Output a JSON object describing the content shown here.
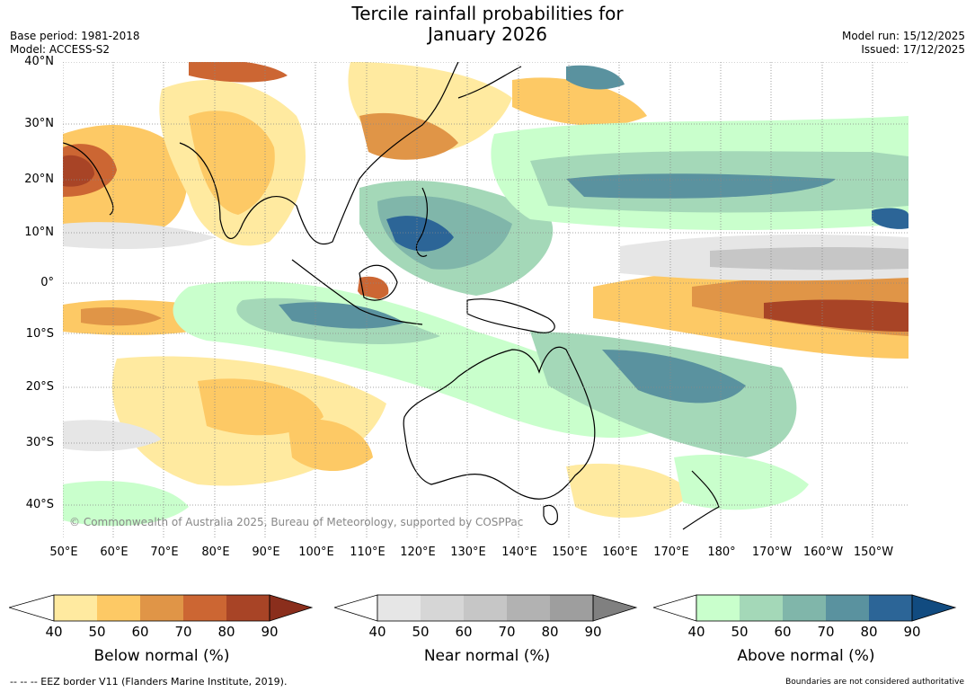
{
  "header": {
    "title_line1": "Tercile rainfall probabilities for",
    "title_line2": "January 2026",
    "base_period": "Base period: 1981-2018",
    "model": "Model: ACCESS-S2",
    "model_run": "Model run: 15/12/2025",
    "issued": "Issued: 17/12/2025"
  },
  "map": {
    "lat_labels": [
      "40°N",
      "30°N",
      "20°N",
      "10°N",
      "0°",
      "10°S",
      "20°S",
      "30°S",
      "40°S"
    ],
    "lon_labels": [
      "50°E",
      "60°E",
      "70°E",
      "80°E",
      "90°E",
      "100°E",
      "110°E",
      "120°E",
      "130°E",
      "140°E",
      "150°E",
      "160°E",
      "170°E",
      "180°",
      "170°W",
      "160°W",
      "150°W"
    ],
    "copyright": "© Commonwealth of Australia 2025, Bureau of Meteorology, supported by COSPPac",
    "colors": {
      "below": [
        "#ffeaa0",
        "#fdc965",
        "#e09547",
        "#cc6633",
        "#a84426",
        "#8a2e1c"
      ],
      "near": [
        "#e6e6e6",
        "#d6d6d6",
        "#c6c6c6",
        "#b2b2b2",
        "#9e9e9e",
        "#808080"
      ],
      "above": [
        "#c9ffcc",
        "#a4d8b8",
        "#80b6aa",
        "#5a929f",
        "#2c6597",
        "#114b80"
      ]
    }
  },
  "legend": {
    "below": {
      "label": "Below normal (%)",
      "ticks": [
        "40",
        "50",
        "60",
        "70",
        "80",
        "90"
      ]
    },
    "near": {
      "label": "Near normal (%)",
      "ticks": [
        "40",
        "50",
        "60",
        "70",
        "80",
        "90"
      ]
    },
    "above": {
      "label": "Above normal (%)",
      "ticks": [
        "40",
        "50",
        "60",
        "70",
        "80",
        "90"
      ]
    }
  },
  "footer": {
    "eez_note": "--  --  -- EEZ border V11 (Flanders Marine Institute, 2019).",
    "disclaimer": "Boundaries are not considered authoritative"
  }
}
